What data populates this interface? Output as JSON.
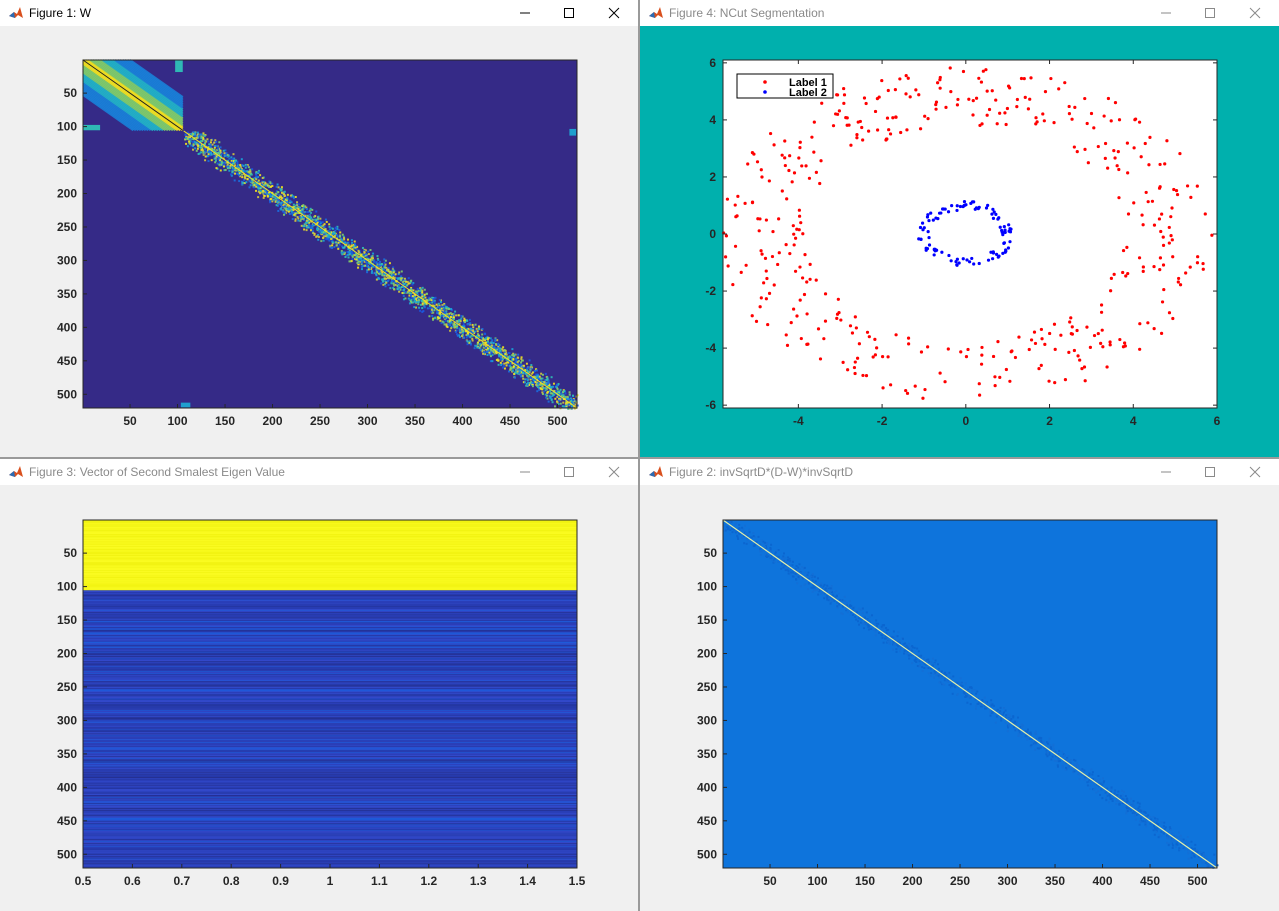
{
  "windows": [
    {
      "id": "fig1",
      "title": "Figure 1: W",
      "active": true
    },
    {
      "id": "fig4",
      "title": "Figure 4: NCut Segmentation",
      "active": false
    },
    {
      "id": "fig3",
      "title": "Figure 3: Vector of Second Smalest Eigen Value",
      "active": false
    },
    {
      "id": "fig2",
      "title": "Figure 2: invSqrtD*(D-W)*invSqrtD",
      "active": false
    }
  ],
  "colors": {
    "parula_dark": "#352a87",
    "parula_blue": "#0f5cdd",
    "parula_cyan": "#1db5c8",
    "parula_yellow": "#f9fb0e",
    "teal_bg": "#00b0ad",
    "label1": "#ff0000",
    "label2": "#0000ff"
  },
  "icons": {
    "app": "matlab-icon",
    "minimize": "minimize-icon",
    "maximize": "maximize-icon",
    "close": "close-icon"
  },
  "chart_data": [
    {
      "id": "fig1",
      "type": "heatmap",
      "title": "",
      "xlabel": "",
      "ylabel": "",
      "x_ticks": [
        "50",
        "100",
        "150",
        "200",
        "250",
        "300",
        "350",
        "400",
        "450",
        "500"
      ],
      "y_ticks": [
        "50",
        "100",
        "150",
        "200",
        "250",
        "300",
        "350",
        "400",
        "450",
        "500"
      ],
      "xlim": [
        1,
        520
      ],
      "ylim": [
        1,
        520
      ],
      "grid": false,
      "colormap": "parula"
    },
    {
      "id": "fig4",
      "type": "scatter",
      "title": "",
      "xlabel": "",
      "ylabel": "",
      "xlim": [
        -5.8,
        6
      ],
      "ylim": [
        -6.1,
        6.1
      ],
      "x_ticks": [
        "-4",
        "-2",
        "0",
        "2",
        "4",
        "6"
      ],
      "y_ticks": [
        "6",
        "4",
        "2",
        "0",
        "-2",
        "-4",
        "-6"
      ],
      "legend": {
        "placement": "top-left",
        "entries": [
          "Label 1",
          "Label 2"
        ]
      },
      "series": [
        {
          "name": "Label 1",
          "color": "#ff0000",
          "shape": "ring",
          "inner_radius": 3.8,
          "outer_radius": 5.9,
          "count": 420
        },
        {
          "name": "Label 2",
          "color": "#0000ff",
          "shape": "ring",
          "inner_radius": 0.85,
          "outer_radius": 1.15,
          "count": 100
        }
      ],
      "grid": false
    },
    {
      "id": "fig3",
      "type": "heatmap",
      "title": "",
      "xlabel": "",
      "ylabel": "",
      "x_ticks": [
        "0.5",
        "0.6",
        "0.7",
        "0.8",
        "0.9",
        "1",
        "1.1",
        "1.2",
        "1.3",
        "1.4",
        "1.5"
      ],
      "y_ticks": [
        "50",
        "100",
        "150",
        "200",
        "250",
        "300",
        "350",
        "400",
        "450",
        "500"
      ],
      "xlim": [
        0.5,
        1.5
      ],
      "ylim": [
        1,
        520
      ],
      "grid": false,
      "colormap": "parula",
      "bands": [
        {
          "rows": [
            1,
            105
          ],
          "color": "#f6f818"
        },
        {
          "rows": [
            106,
            520
          ],
          "color": "#2b48c8"
        }
      ]
    },
    {
      "id": "fig2",
      "type": "heatmap",
      "title": "",
      "xlabel": "",
      "ylabel": "",
      "x_ticks": [
        "50",
        "100",
        "150",
        "200",
        "250",
        "300",
        "350",
        "400",
        "450",
        "500"
      ],
      "y_ticks": [
        "50",
        "100",
        "150",
        "200",
        "250",
        "300",
        "350",
        "400",
        "450",
        "500"
      ],
      "xlim": [
        1,
        520
      ],
      "ylim": [
        1,
        520
      ],
      "grid": false,
      "colormap": "parula"
    }
  ]
}
